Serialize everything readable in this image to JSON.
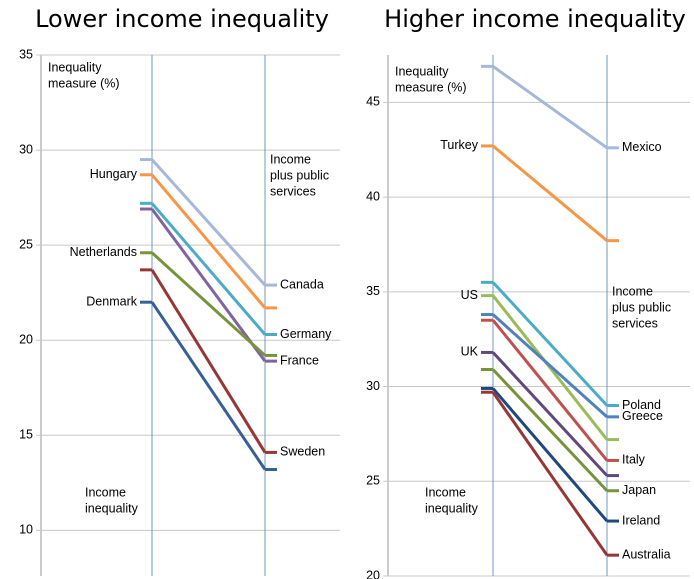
{
  "chart_data": [
    {
      "type": "slope",
      "title": "Lower income inequality",
      "y_label": [
        "Inequality",
        "measure (%)"
      ],
      "categories": [
        [
          "Income",
          "inequality"
        ],
        [
          "Income",
          "plus public",
          "services"
        ]
      ],
      "ylim": [
        7.6,
        35
      ],
      "yticks": [
        10,
        15,
        20,
        25,
        30,
        35
      ],
      "grid": true,
      "series": [
        {
          "name": "Canada",
          "color": "#a5b8d8",
          "values": [
            29.5,
            22.9
          ],
          "label_at": "end"
        },
        {
          "name": "Hungary",
          "color": "#f79646",
          "values": [
            28.7,
            21.7
          ],
          "label_at": "start"
        },
        {
          "name": "Germany",
          "color": "#4bacc6",
          "values": [
            27.2,
            20.3
          ],
          "label_at": "end"
        },
        {
          "name": "France",
          "color": "#8064a2",
          "values": [
            26.9,
            18.9
          ],
          "label_at": "end"
        },
        {
          "name": "Netherlands",
          "color": "#77933c",
          "values": [
            24.6,
            19.2
          ],
          "label_at": "start"
        },
        {
          "name": "Sweden",
          "color": "#953735",
          "values": [
            23.7,
            14.1
          ],
          "label_at": "end"
        },
        {
          "name": "Denmark",
          "color": "#386096",
          "values": [
            22.0,
            13.2
          ],
          "label_at": "start"
        }
      ]
    },
    {
      "type": "slope",
      "title": "Higher income inequality",
      "y_label": [
        "Inequality",
        "measure (%)"
      ],
      "categories": [
        [
          "Income",
          "inequality"
        ],
        [
          "Income",
          "plus public",
          "services"
        ]
      ],
      "ylim": [
        20,
        47.5
      ],
      "yticks": [
        20,
        25,
        30,
        35,
        40,
        45
      ],
      "grid": true,
      "series": [
        {
          "name": "Mexico",
          "color": "#a5b8d8",
          "values": [
            46.9,
            42.6
          ],
          "label_at": "end"
        },
        {
          "name": "Turkey",
          "color": "#f79646",
          "values": [
            42.7,
            37.7
          ],
          "label_at": "start"
        },
        {
          "name": "Poland",
          "color": "#4bacc6",
          "values": [
            35.5,
            29.0
          ],
          "label_at": "end"
        },
        {
          "name": "US",
          "color": "#9bbb59",
          "values": [
            34.8,
            27.2
          ],
          "label_at": "start"
        },
        {
          "name": "Greece",
          "color": "#4f81bd",
          "values": [
            33.8,
            28.4
          ],
          "label_at": "end"
        },
        {
          "name": "Italy",
          "color": "#c0504d",
          "values": [
            33.5,
            26.1
          ],
          "label_at": "end"
        },
        {
          "name": "UK",
          "color": "#604a7b",
          "values": [
            31.8,
            25.3
          ],
          "label_at": "start"
        },
        {
          "name": "Japan",
          "color": "#77933c",
          "values": [
            30.9,
            24.5
          ],
          "label_at": "end"
        },
        {
          "name": "Ireland",
          "color": "#1f497d",
          "values": [
            29.9,
            22.9
          ],
          "label_at": "end"
        },
        {
          "name": "Australia",
          "color": "#953735",
          "values": [
            29.7,
            21.1
          ],
          "label_at": "end"
        }
      ]
    }
  ]
}
